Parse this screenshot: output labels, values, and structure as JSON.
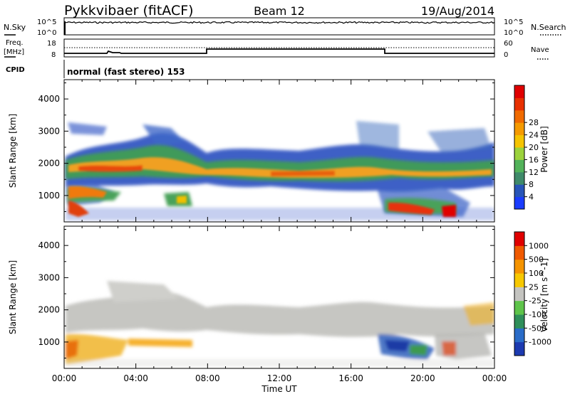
{
  "header": {
    "title": "Pykkvibaer (fitACF)",
    "beam": "Beam 12",
    "date": "19/Aug/2014"
  },
  "status_panels": {
    "nsky_label": "N.Sky",
    "nsearch_label": "N.Search",
    "nsky_ticks": [
      "10^5",
      "10^0"
    ],
    "nsearch_ticks": [
      "10^5",
      "10^0"
    ],
    "freq_label_1": "Freq.",
    "freq_label_2": "[MHz]",
    "freq_ticks": [
      "18",
      "8"
    ],
    "nave_label": "Nave",
    "nave_ticks": [
      "60",
      "0"
    ],
    "cpid_label": "CPID",
    "cpid_text": "normal (fast stereo) 153"
  },
  "chart_data": [
    {
      "type": "heatmap",
      "title": "",
      "xlabel": "",
      "ylabel": "Slant Range [km]",
      "xlim": [
        "00:00",
        "24:00"
      ],
      "ylim": [
        180,
        4600
      ],
      "yticks": [
        1000,
        2000,
        3000,
        4000
      ],
      "colorbar": {
        "label": "Power [dB]",
        "ticks": [
          4,
          8,
          12,
          16,
          20,
          24,
          28
        ],
        "colors": [
          "#1a3cff",
          "#2855b8",
          "#3f8a6a",
          "#52b25a",
          "#9bd23c",
          "#f5c400",
          "#f59a00",
          "#f06a00",
          "#e83000",
          "#e00000"
        ]
      }
    },
    {
      "type": "heatmap",
      "title": "",
      "xlabel": "Time UT",
      "ylabel": "Slant Range [km]",
      "xticks": [
        "00:00",
        "04:00",
        "08:00",
        "12:00",
        "16:00",
        "20:00",
        "00:00"
      ],
      "ylim": [
        180,
        4600
      ],
      "yticks": [
        1000,
        2000,
        3000,
        4000
      ],
      "colorbar": {
        "label": "Velocity [m s^-1]",
        "ticks": [
          "1000",
          "500",
          "100",
          "25",
          "-25",
          "-100",
          "-500",
          "-1000"
        ],
        "colors": [
          "#1c3ab0",
          "#2a6cc8",
          "#2f8f5a",
          "#5ec44a",
          "#c4c4c0",
          "#f7c800",
          "#f59400",
          "#f05a00",
          "#e00000"
        ]
      }
    }
  ]
}
